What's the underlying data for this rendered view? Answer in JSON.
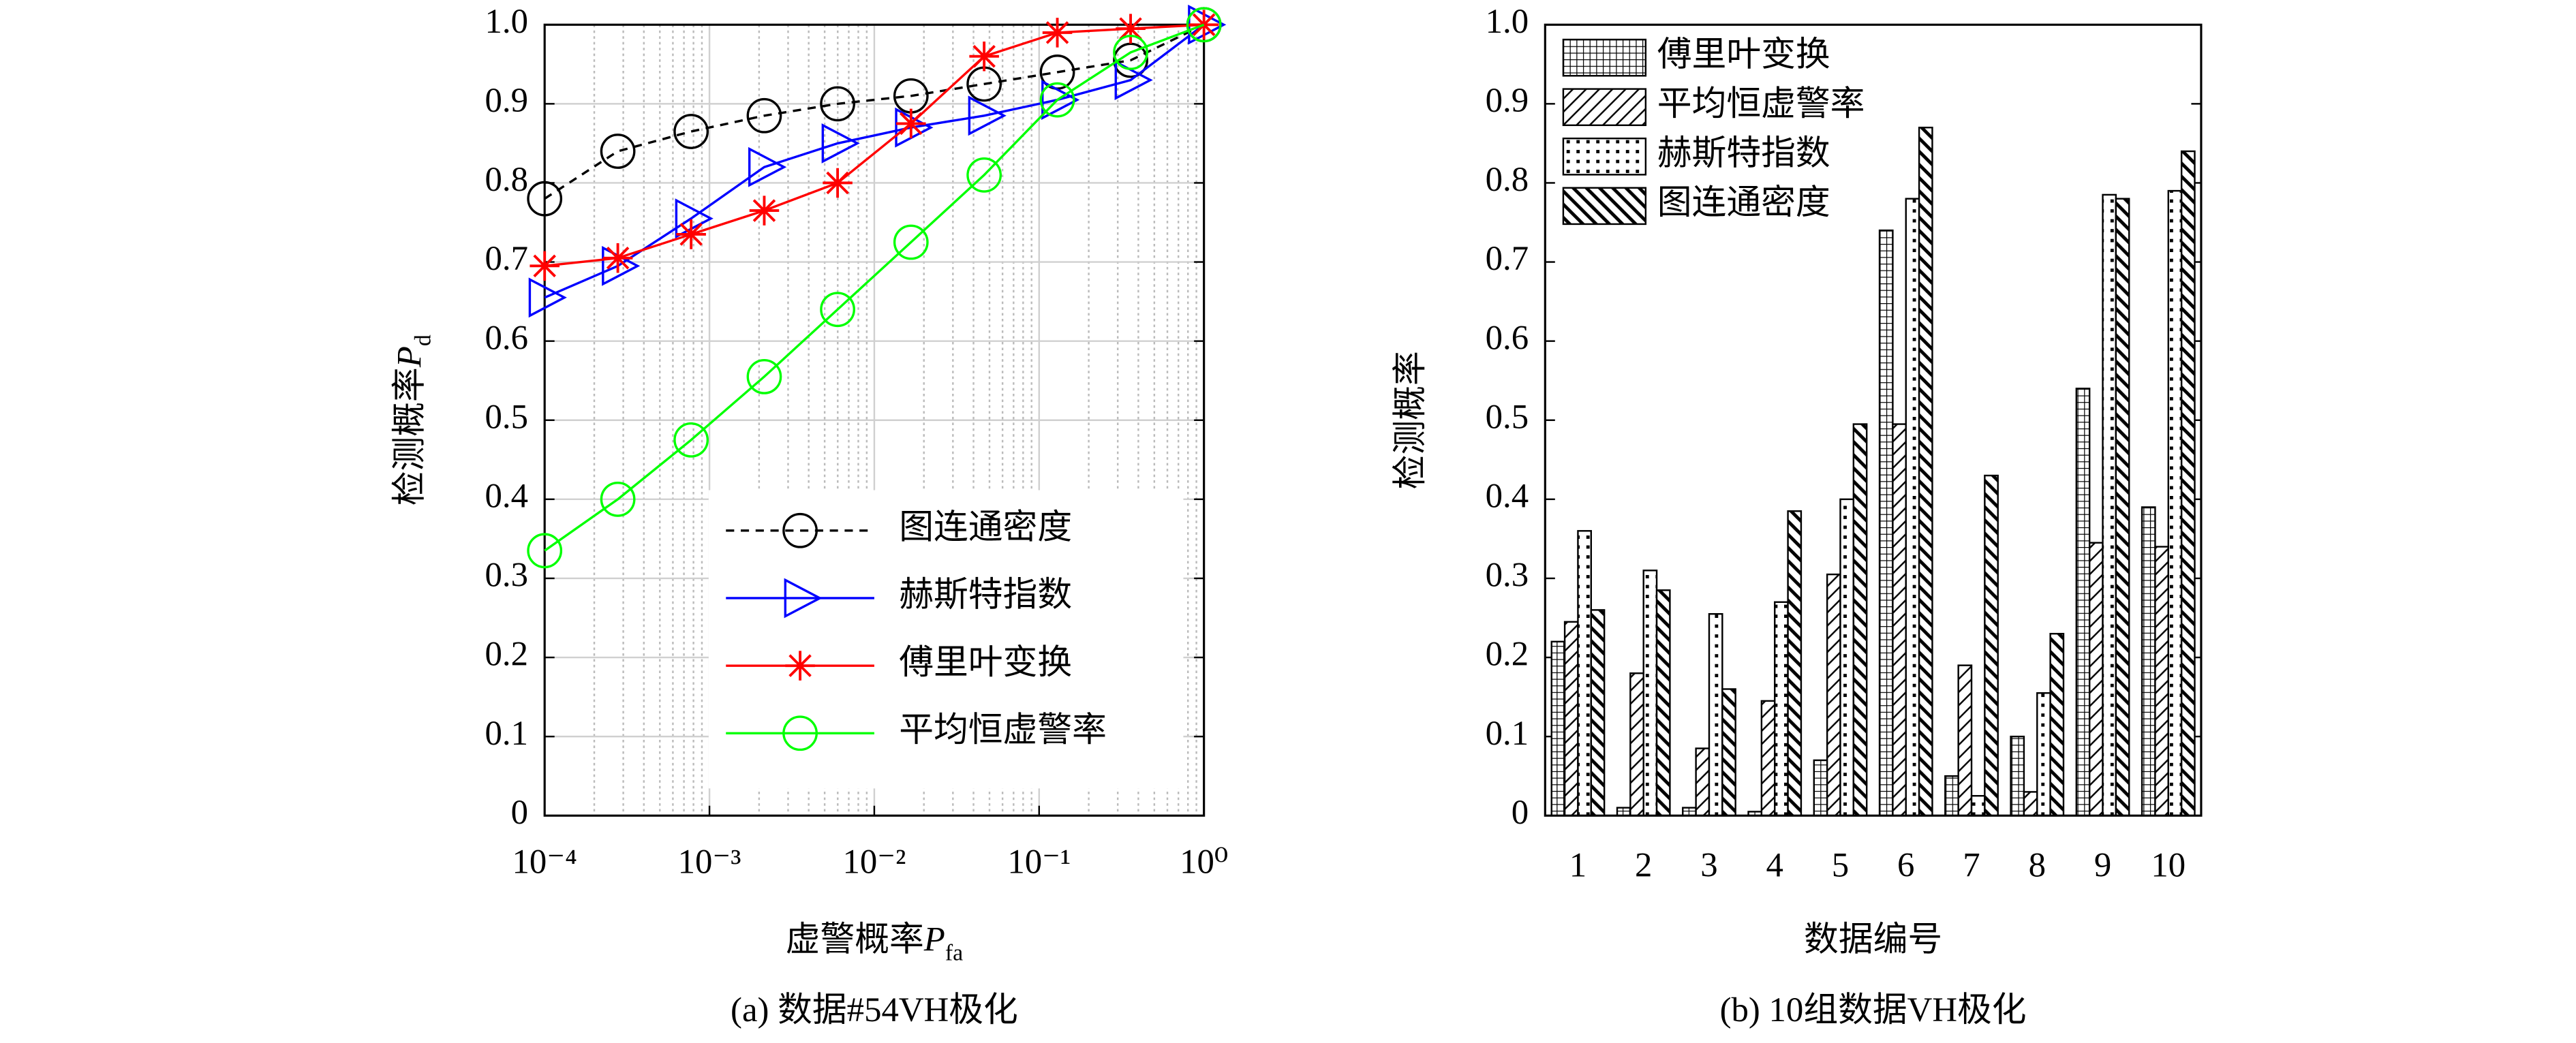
{
  "chart_data": [
    {
      "type": "line",
      "xscale": "log",
      "grid": true,
      "legend": "lower right",
      "caption": "(a) 数据#54VH极化",
      "xlabel": [
        "虚警概率",
        "P",
        "fa"
      ],
      "ylabel": [
        "检测概率",
        "P",
        "d"
      ],
      "x": [
        0.0001,
        0.000278,
        0.000774,
        0.00215,
        0.00599,
        0.0167,
        0.0464,
        0.129,
        0.359,
        1
      ],
      "xlim": [
        0.0001,
        1
      ],
      "xticks": [
        {
          "value": 0.0001,
          "label": "10⁻⁴"
        },
        {
          "value": 0.001,
          "label": "10⁻³"
        },
        {
          "value": 0.01,
          "label": "10⁻²"
        },
        {
          "value": 0.1,
          "label": "10⁻¹"
        },
        {
          "value": 1,
          "label": "10⁰"
        }
      ],
      "ylim": [
        0,
        1
      ],
      "yticks": [
        0,
        0.1,
        0.2,
        0.3,
        0.4,
        0.5,
        0.6,
        0.7,
        0.8,
        0.9,
        {
          "value": 1,
          "label": "1.0"
        }
      ],
      "series": [
        {
          "name": "图连通密度",
          "color": "#000000",
          "marker": "circle",
          "dashed": true,
          "values": [
            0.78,
            0.84,
            0.865,
            0.885,
            0.9,
            0.91,
            0.925,
            0.94,
            0.955,
            1.0
          ]
        },
        {
          "name": "赫斯特指数",
          "color": "#0000ff",
          "marker": "triangle",
          "values": [
            0.655,
            0.695,
            0.755,
            0.82,
            0.85,
            0.87,
            0.885,
            0.905,
            0.93,
            1.0
          ]
        },
        {
          "name": "傅里叶变换",
          "color": "#ff0000",
          "marker": "asterisk",
          "values": [
            0.695,
            0.705,
            0.735,
            0.765,
            0.8,
            0.875,
            0.96,
            0.99,
            0.995,
            1.0
          ]
        },
        {
          "name": "平均恒虚警率",
          "color": "#00ff00",
          "marker": "circle",
          "values": [
            0.335,
            0.4,
            0.475,
            0.555,
            0.64,
            0.725,
            0.81,
            0.905,
            0.965,
            1.0
          ]
        }
      ]
    },
    {
      "type": "bar",
      "legend": "upper left",
      "caption": "(b) 10组数据VH极化",
      "xlabel": [
        "数据编号"
      ],
      "ylabel": [
        "检测概率"
      ],
      "categories": [
        "1",
        "2",
        "3",
        "4",
        "5",
        "6",
        "7",
        "8",
        "9",
        "10"
      ],
      "ylim": [
        0,
        1
      ],
      "yticks": [
        0,
        0.1,
        0.2,
        0.3,
        0.4,
        0.5,
        0.6,
        0.7,
        0.8,
        0.9,
        {
          "value": 1,
          "label": "1.0"
        }
      ],
      "series": [
        {
          "name": "傅里叶变换",
          "color": "#000000",
          "hatch": "grid",
          "values": [
            0.22,
            0.01,
            0.01,
            0.005,
            0.07,
            0.74,
            0.05,
            0.1,
            0.54,
            0.39
          ]
        },
        {
          "name": "平均恒虚警率",
          "color": "#000000",
          "hatch": "slash",
          "values": [
            0.245,
            0.18,
            0.085,
            0.145,
            0.305,
            0.495,
            0.19,
            0.03,
            0.345,
            0.34
          ]
        },
        {
          "name": "赫斯特指数",
          "color": "#000000",
          "hatch": "dots",
          "values": [
            0.36,
            0.31,
            0.255,
            0.27,
            0.4,
            0.78,
            0.025,
            0.155,
            0.785,
            0.79
          ]
        },
        {
          "name": "图连通密度",
          "color": "#000000",
          "hatch": "backslash",
          "values": [
            0.26,
            0.285,
            0.16,
            0.385,
            0.495,
            0.87,
            0.43,
            0.23,
            0.78,
            0.84
          ]
        }
      ]
    }
  ]
}
